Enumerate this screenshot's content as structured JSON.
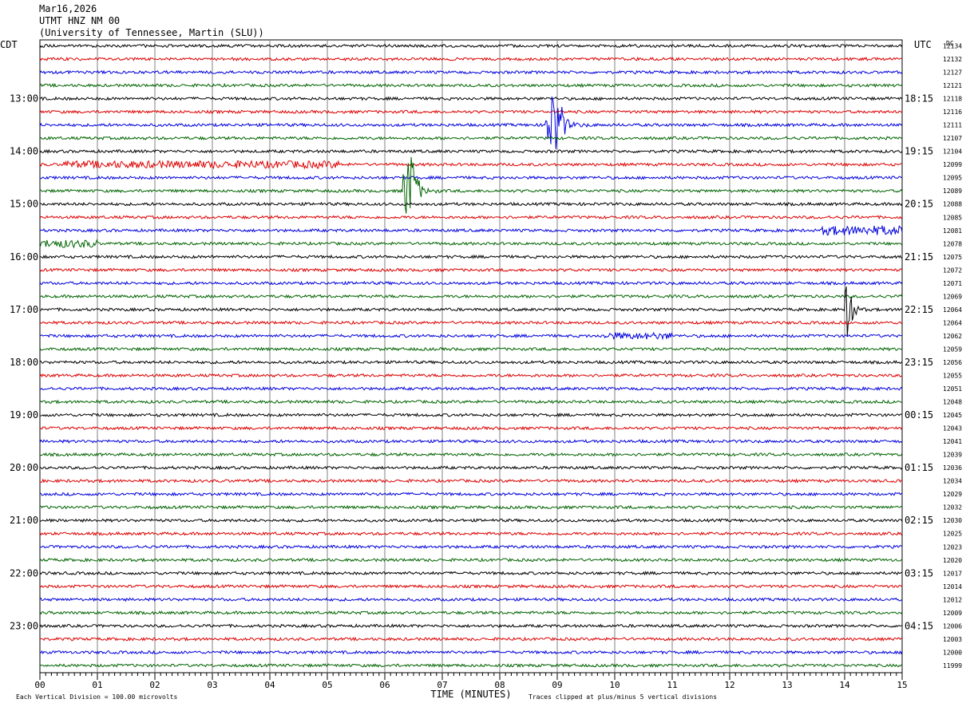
{
  "header": {
    "date": "Mar16,2026",
    "station": "UTMT HNZ NM 00",
    "network": "(University of Tennessee, Martin (SLU))"
  },
  "labels": {
    "left_tz": "CDT",
    "right_tz": "UTC",
    "dc": "DC",
    "xlabel": "TIME (MINUTES)",
    "footer_left": "Each Vertical Division =  100.00 microvolts",
    "footer_right": "Traces clipped at plus/minus 5 vertical divisions"
  },
  "colors": {
    "trace_cycle": [
      "#000000",
      "#dd0000",
      "#0000dd",
      "#006400"
    ],
    "grid": "#808080",
    "background": "#ffffff"
  },
  "chart_data": {
    "type": "line",
    "title": "UTMT HNZ NM 00",
    "xlabel": "TIME (MINUTES)",
    "xlim": [
      0,
      15
    ],
    "x_ticks": [
      "00",
      "01",
      "02",
      "03",
      "04",
      "05",
      "06",
      "07",
      "08",
      "09",
      "10",
      "11",
      "12",
      "13",
      "14",
      "15"
    ],
    "rows_per_hour": 4,
    "row_count": 48,
    "left_hour_labels": [
      "13:00",
      "14:00",
      "15:00",
      "16:00",
      "17:00",
      "18:00",
      "19:00",
      "20:00",
      "21:00",
      "22:00",
      "23:00"
    ],
    "left_hour_label_rows": [
      4,
      8,
      12,
      16,
      20,
      24,
      28,
      32,
      36,
      40,
      44
    ],
    "right_hour_labels": [
      "18:15",
      "19:15",
      "20:15",
      "21:15",
      "22:15",
      "23:15",
      "00:15",
      "01:15",
      "02:15",
      "03:15",
      "04:15"
    ],
    "dc_offsets": [
      "12134",
      "12132",
      "12127",
      "12121",
      "12118",
      "12116",
      "12111",
      "12107",
      "12104",
      "12099",
      "12095",
      "12089",
      "12088",
      "12085",
      "12081",
      "12078",
      "12075",
      "12072",
      "12071",
      "12069",
      "12064",
      "12064",
      "12062",
      "12059",
      "12056",
      "12055",
      "12051",
      "12048",
      "12045",
      "12043",
      "12041",
      "12039",
      "12036",
      "12034",
      "12029",
      "12032",
      "12030",
      "12025",
      "12023",
      "12020",
      "12017",
      "12014",
      "12012",
      "12009",
      "12006",
      "12003",
      "12000",
      "11999"
    ],
    "events": [
      {
        "row": 6,
        "minute_start": 8.8,
        "minute_end": 9.6,
        "peak_divisions": 2.2
      },
      {
        "row": 11,
        "minute_start": 6.3,
        "minute_end": 7.0,
        "peak_divisions": 2.6
      },
      {
        "row": 20,
        "minute_start": 14.0,
        "minute_end": 14.4,
        "peak_divisions": 2.4
      }
    ],
    "noise_bursts": [
      {
        "row": 14,
        "minute_start": 13.6,
        "minute_end": 15.0,
        "peak_divisions": 0.5
      },
      {
        "row": 15,
        "minute_start": 0.0,
        "minute_end": 1.0,
        "peak_divisions": 0.4
      },
      {
        "row": 9,
        "minute_start": 0.4,
        "minute_end": 5.2,
        "peak_divisions": 0.35
      },
      {
        "row": 22,
        "minute_start": 9.8,
        "minute_end": 11.0,
        "peak_divisions": 0.3
      }
    ],
    "vertical_division_microvolts": 100.0,
    "clip_divisions": 5
  }
}
